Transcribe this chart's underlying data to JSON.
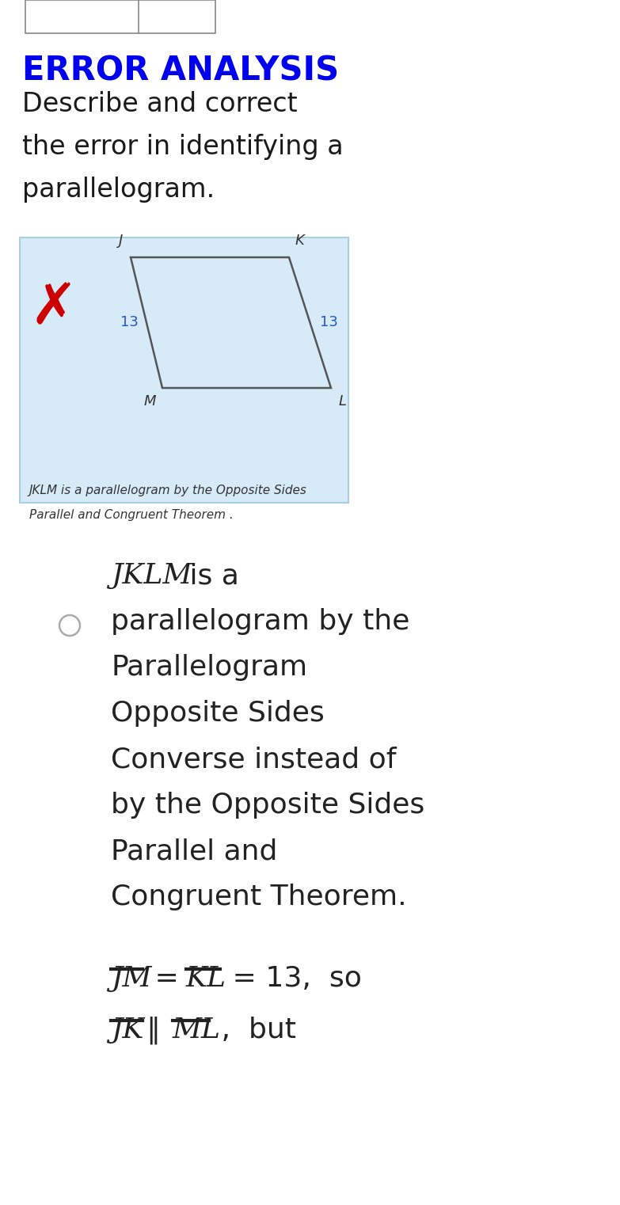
{
  "bg_color": "#ffffff",
  "box_bg_color": "#d6eaf8",
  "box_border_color": "#a8cfe0",
  "title": "ERROR ANALYSIS",
  "title_color": "#0000ee",
  "subtitle_lines": [
    "Describe and correct",
    "the error in identifying a",
    "parallelogram."
  ],
  "subtitle_color": "#1a1a1a",
  "box_caption_line1": "JKLM is a parallelogram by the Opposite Sides",
  "box_caption_line2": "Parallel and Congruent Theorem .",
  "vertex_labels": [
    "J",
    "K",
    "L",
    "M"
  ],
  "side_label_color": "#2255cc",
  "answer_italic_prefix": "JKLM",
  "answer_lines": [
    " is a",
    "parallelogram by the",
    "Parallelogram",
    "Opposite Sides",
    "Converse instead of",
    "by the Opposite Sides",
    "Parallel and",
    "Congruent Theorem."
  ],
  "radio_color": "#aaaaaa",
  "text_color": "#222222",
  "math_color": "#222222"
}
